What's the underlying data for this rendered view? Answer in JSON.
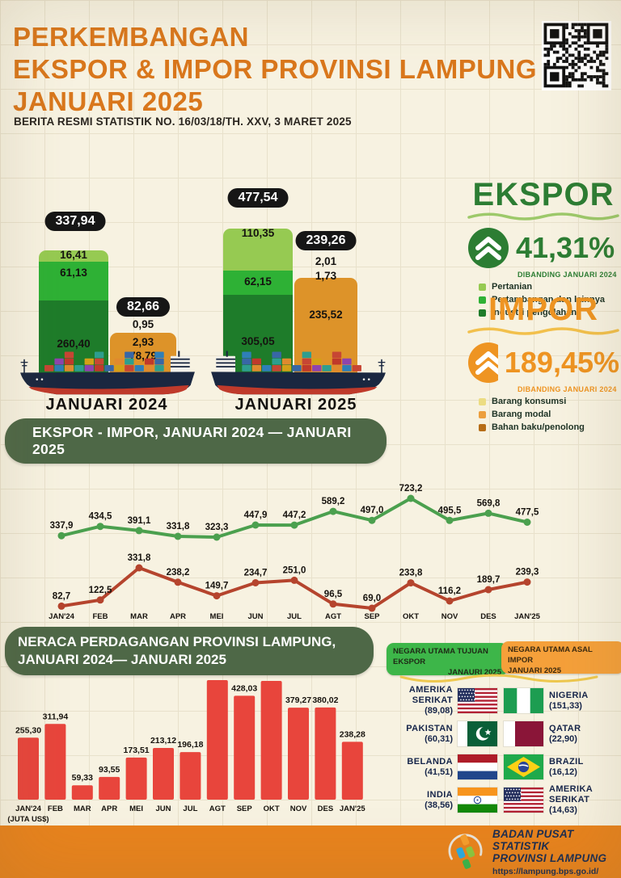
{
  "header": {
    "title1": "PERKEMBANGAN",
    "title2": "EKSPOR & IMPOR PROVINSI LAMPUNG",
    "title3": "JANUARI 2025",
    "subtitle": "BERITA RESMI STATISTIK NO. 16/03/18/TH. XXV, 3 MARET 2025"
  },
  "colors": {
    "title_orange": "#d9771c",
    "ekspor_green": "#2c7d33",
    "impor_orange": "#ee9422",
    "seg_light_green": "#96ca52",
    "seg_mid_green": "#2eb135",
    "seg_dark_green": "#1e7c2a",
    "import_bar_orange": "#dd9329",
    "line_green": "#4ba04e",
    "line_red": "#b5442d",
    "neraca_red": "#e8453c",
    "banner_green": "#4e6847",
    "footer_orange": "#e8831d"
  },
  "ekspor_panel": {
    "title": "EKSPOR",
    "pct": "41,31%",
    "compare": "DIBANDING JANUARI 2024",
    "legend": [
      {
        "name": "Pertanian",
        "color": "#96ca52"
      },
      {
        "name": "Pertambangan dan lainnya",
        "color": "#2eb135"
      },
      {
        "name": "Industri pengolahan",
        "color": "#1e7c2a"
      }
    ]
  },
  "impor_panel": {
    "title": "IMPOR",
    "pct": "189,45%",
    "compare": "DIBANDING JANUARI 2024",
    "legend": [
      {
        "name": "Barang konsumsi",
        "color": "#ecdc82"
      },
      {
        "name": "Barang modal",
        "color": "#ec9f3e"
      },
      {
        "name": "Bahan baku/penolong",
        "color": "#b66d17"
      }
    ]
  },
  "banner1": {
    "text": "EKSPOR - IMPOR, JANUARI 2024 — JANUARI 2025"
  },
  "banner2": {
    "line1": "NERACA PERDAGANGAN PROVINSI LAMPUNG,",
    "line2": "JANUARI 2024— JANUARI 2025"
  },
  "countries": {
    "ekspor_header": {
      "line1": "NEGARA UTAMA TUJUAN EKSPOR",
      "line2": "JANAURI 2025"
    },
    "impor_header": {
      "line1": "NEGARA UTAMA ASAL IMPOR",
      "line2": "JANUARI 2025"
    },
    "rows": [
      {
        "left": {
          "name": "AMERIKA SERIKAT",
          "value": "(89,08)",
          "flag": "us"
        },
        "right": {
          "name": "NIGERIA",
          "value": "(151,33)",
          "flag": "ng"
        }
      },
      {
        "left": {
          "name": "PAKISTAN",
          "value": "(60,31)",
          "flag": "pk"
        },
        "right": {
          "name": "QATAR",
          "value": "(22,90)",
          "flag": "qa"
        }
      },
      {
        "left": {
          "name": "BELANDA",
          "value": "(41,51)",
          "flag": "nl"
        },
        "right": {
          "name": "BRAZIL",
          "value": "(16,12)",
          "flag": "br"
        }
      },
      {
        "left": {
          "name": "INDIA",
          "value": "(38,56)",
          "flag": "in"
        },
        "right": {
          "name": "AMERIKA SERIKAT",
          "value": "(14,63)",
          "flag": "us"
        }
      }
    ]
  },
  "footer": {
    "line1": "BADAN PUSAT STATISTIK",
    "line2": "PROVINSI LAMPUNG",
    "url": "https://lampung.bps.go.id/"
  },
  "chart_data": [
    {
      "type": "bar",
      "subtype": "stacked-comparison",
      "title": "Ekspor & Impor, Januari 2024 vs Januari 2025 (Juta US$)",
      "groups": [
        {
          "label": "JANUARI 2024",
          "ekspor": {
            "total": 337.94,
            "total_label": "337,94",
            "segments": [
              {
                "name": "Pertanian",
                "value": 16.41,
                "label": "16,41"
              },
              {
                "name": "Pertambangan dan lainnya",
                "value": 61.13,
                "label": "61,13"
              },
              {
                "name": "Industri pengolahan",
                "value": 260.4,
                "label": "260,40"
              }
            ]
          },
          "impor": {
            "total": 82.66,
            "total_label": "82,66",
            "segments": [
              {
                "name": "Barang konsumsi",
                "value": 0.95,
                "label": "0,95"
              },
              {
                "name": "Barang modal",
                "value": 2.93,
                "label": "2,93"
              },
              {
                "name": "Bahan baku/penolong",
                "value": 78.79,
                "label": "78,79"
              }
            ],
            "labels_above": [
              "0,95"
            ],
            "labels_inside": [
              "2,93",
              "78,79"
            ]
          }
        },
        {
          "label": "JANUARI 2025",
          "ekspor": {
            "total": 477.54,
            "total_label": "477,54",
            "segments": [
              {
                "name": "Pertanian",
                "value": 110.35,
                "label": "110,35"
              },
              {
                "name": "Pertambangan dan lainnya",
                "value": 62.15,
                "label": "62,15"
              },
              {
                "name": "Industri pengolahan",
                "value": 305.05,
                "label": "305,05"
              }
            ]
          },
          "impor": {
            "total": 239.26,
            "total_label": "239,26",
            "segments": [
              {
                "name": "Barang konsumsi",
                "value": 2.01,
                "label": "2,01"
              },
              {
                "name": "Barang modal",
                "value": 1.73,
                "label": "1,73"
              },
              {
                "name": "Bahan baku/penolong",
                "value": 235.52,
                "label": "235,52"
              }
            ],
            "labels_above": [
              "2,01",
              "1,73"
            ],
            "labels_inside": [
              "235,52"
            ]
          }
        }
      ],
      "ekspor_growth_pct": 41.31,
      "impor_growth_pct": 189.45
    },
    {
      "type": "line",
      "title": "EKSPOR - IMPOR, JANUARI 2024 — JANUARI 2025",
      "x": [
        "JAN'24",
        "FEB",
        "MAR",
        "APR",
        "MEI",
        "JUN",
        "JUL",
        "AGT",
        "SEP",
        "OKT",
        "NOV",
        "DES",
        "JAN'25"
      ],
      "series": [
        {
          "name": "Ekspor",
          "color": "#4ba04e",
          "values": [
            337.9,
            434.5,
            391.1,
            331.8,
            323.3,
            447.9,
            447.2,
            589.2,
            497.0,
            723.2,
            495.5,
            569.8,
            477.5
          ],
          "labels": [
            "337,9",
            "434,5",
            "391,1",
            "331,8",
            "323,3",
            "447,9",
            "447,2",
            "589,2",
            "497,0",
            "723,2",
            "495,5",
            "569,8",
            "477,5"
          ]
        },
        {
          "name": "Impor",
          "color": "#b5442d",
          "values": [
            82.7,
            122.5,
            331.8,
            238.2,
            149.7,
            234.7,
            251.0,
            96.5,
            69.0,
            233.8,
            116.2,
            189.7,
            239.3
          ],
          "labels": [
            "82,7",
            "122,5",
            "331,8",
            "238,2",
            "149,7",
            "234,7",
            "251,0",
            "96,5",
            "69,0",
            "233,8",
            "116,2",
            "189,7",
            "239,3"
          ]
        }
      ],
      "legend_position": "none",
      "grid": false
    },
    {
      "type": "bar",
      "title": "NERACA PERDAGANGAN PROVINSI LAMPUNG, JANUARI 2024— JANUARI 2025",
      "unit_label": "(JUTA US$)",
      "categories": [
        "JAN'24",
        "FEB",
        "MAR",
        "APR",
        "MEI",
        "JUN",
        "JUL",
        "AGT",
        "SEP",
        "OKT",
        "NOV",
        "DES",
        "JAN'25"
      ],
      "values": [
        255.3,
        311.94,
        59.33,
        93.55,
        173.51,
        213.12,
        196.18,
        492.72,
        428.03,
        489.38,
        379.27,
        380.02,
        238.28
      ],
      "value_labels": [
        "255,30",
        "311,94",
        "59,33",
        "93,55",
        "173,51",
        "213,12",
        "196,18",
        "492,72",
        "428,03",
        "489,38",
        "379,27",
        "380,02",
        "238,28"
      ],
      "color": "#e8453c",
      "ylim": [
        0,
        500
      ],
      "grid": false
    }
  ]
}
